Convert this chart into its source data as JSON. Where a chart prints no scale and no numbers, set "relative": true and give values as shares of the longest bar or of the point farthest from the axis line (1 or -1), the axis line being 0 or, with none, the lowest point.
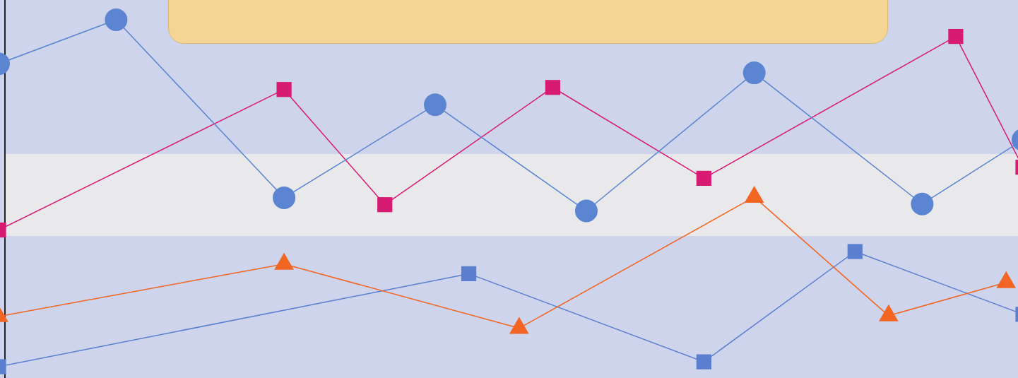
{
  "chart_data": {
    "type": "line",
    "relative": true,
    "legend": false,
    "line_style": "solid",
    "categories": [
      null,
      null,
      null,
      null,
      null,
      null,
      null,
      null,
      null,
      null,
      null,
      null,
      null,
      null,
      null,
      null,
      null,
      null,
      null,
      null,
      null,
      null,
      null,
      null,
      null,
      null,
      null,
      null,
      null,
      null,
      null,
      null,
      null,
      null,
      null,
      null,
      null,
      null,
      null,
      null,
      null,
      null,
      null,
      null,
      null,
      null,
      null,
      null,
      null,
      null,
      null,
      null,
      null,
      null,
      null,
      null,
      null,
      null,
      null,
      null,
      null,
      null
    ],
    "series": [
      {
        "color": "#5b85d0",
        "marker": "circle",
        "values": [
          0.873,
          null,
          null,
          null,
          null,
          null,
          null,
          1,
          null,
          null,
          null,
          null,
          null,
          null,
          null,
          null,
          null,
          0.487,
          null,
          null,
          null,
          null,
          null,
          null,
          null,
          null,
          0.755,
          null,
          null,
          null,
          null,
          null,
          null,
          null,
          null,
          0.449,
          null,
          null,
          null,
          null,
          null,
          null,
          null,
          null,
          null,
          0.847,
          null,
          null,
          null,
          null,
          null,
          null,
          null,
          null,
          null,
          0.469,
          null,
          null,
          null,
          null,
          null,
          0.654
        ]
      },
      {
        "color": "#d81b72",
        "marker": "square",
        "values": [
          0.394,
          null,
          null,
          null,
          null,
          null,
          null,
          null,
          null,
          null,
          null,
          null,
          null,
          null,
          null,
          null,
          null,
          0.799,
          null,
          null,
          null,
          null,
          null,
          0.467,
          null,
          null,
          null,
          null,
          null,
          null,
          null,
          null,
          null,
          0.805,
          null,
          null,
          null,
          null,
          null,
          null,
          null,
          null,
          0.543,
          null,
          null,
          null,
          null,
          null,
          null,
          null,
          null,
          null,
          null,
          null,
          null,
          null,
          null,
          0.952,
          null,
          null,
          null,
          0.575
        ]
      },
      {
        "color": "#f26522",
        "marker": "triangle",
        "values": [
          0.145,
          null,
          null,
          null,
          null,
          null,
          null,
          null,
          null,
          null,
          null,
          null,
          null,
          null,
          null,
          null,
          null,
          0.296,
          null,
          null,
          null,
          null,
          null,
          null,
          null,
          null,
          null,
          null,
          null,
          null,
          null,
          0.111,
          null,
          null,
          null,
          null,
          null,
          null,
          null,
          null,
          null,
          null,
          null,
          null,
          null,
          0.489,
          null,
          null,
          null,
          null,
          null,
          null,
          null,
          0.147,
          null,
          null,
          null,
          null,
          null,
          null,
          0.243,
          null
        ]
      },
      {
        "color": "#5b7fce",
        "marker": "square",
        "values": [
          0,
          null,
          null,
          null,
          null,
          null,
          null,
          null,
          null,
          null,
          null,
          null,
          null,
          null,
          null,
          null,
          null,
          null,
          null,
          null,
          null,
          null,
          null,
          null,
          null,
          null,
          null,
          null,
          0.268,
          null,
          null,
          null,
          null,
          null,
          null,
          null,
          null,
          null,
          null,
          null,
          null,
          null,
          0.014,
          null,
          null,
          null,
          null,
          null,
          null,
          null,
          null,
          0.332,
          null,
          null,
          null,
          null,
          null,
          null,
          null,
          null,
          null,
          0.151
        ]
      }
    ]
  }
}
